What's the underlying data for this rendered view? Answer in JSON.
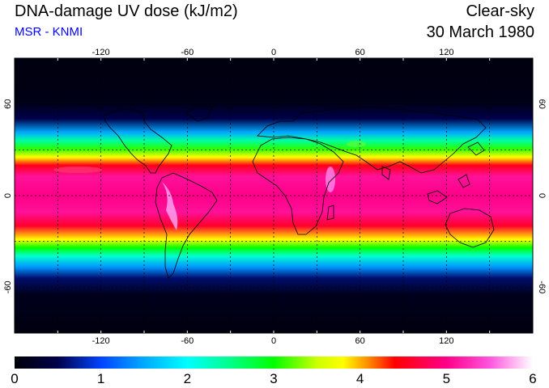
{
  "header": {
    "title": "DNA-damage UV dose (kJ/m2)",
    "subtitle": "MSR - KNMI",
    "sky_condition": "Clear-sky",
    "date": "30 March 1980"
  },
  "colors": {
    "subtitle": "#0000ff",
    "ocean_dark": "#000014",
    "coastline": "#000000",
    "gridline": "#000000"
  },
  "map": {
    "projection": "equirectangular",
    "lon_range": [
      -180,
      180
    ],
    "lat_range": [
      -90,
      90
    ],
    "lon_ticks": [
      -120,
      -60,
      0,
      60,
      120
    ],
    "lat_ticks": [
      60,
      0,
      -60
    ],
    "lon_gridlines": [
      -150,
      -120,
      -90,
      -60,
      -30,
      0,
      30,
      60,
      90,
      120,
      150
    ],
    "lat_gridlines": [
      60,
      30,
      0,
      -30,
      -60
    ]
  },
  "colorbar": {
    "labels": [
      "0",
      "1",
      "2",
      "3",
      "4",
      "5",
      "6"
    ],
    "min": 0,
    "max": 6,
    "stops": [
      {
        "v": 0.0,
        "c": "#000008"
      },
      {
        "v": 0.5,
        "c": "#00004a"
      },
      {
        "v": 1.0,
        "c": "#0044ff"
      },
      {
        "v": 1.5,
        "c": "#00aaff"
      },
      {
        "v": 2.0,
        "c": "#00ffff"
      },
      {
        "v": 2.5,
        "c": "#00ff88"
      },
      {
        "v": 3.0,
        "c": "#00ff00"
      },
      {
        "v": 3.5,
        "c": "#ccff00"
      },
      {
        "v": 3.8,
        "c": "#ffff00"
      },
      {
        "v": 4.1,
        "c": "#ff8800"
      },
      {
        "v": 4.4,
        "c": "#ff0000"
      },
      {
        "v": 5.0,
        "c": "#ff0088"
      },
      {
        "v": 5.5,
        "c": "#ff55dd"
      },
      {
        "v": 6.0,
        "c": "#ffffff"
      }
    ]
  }
}
